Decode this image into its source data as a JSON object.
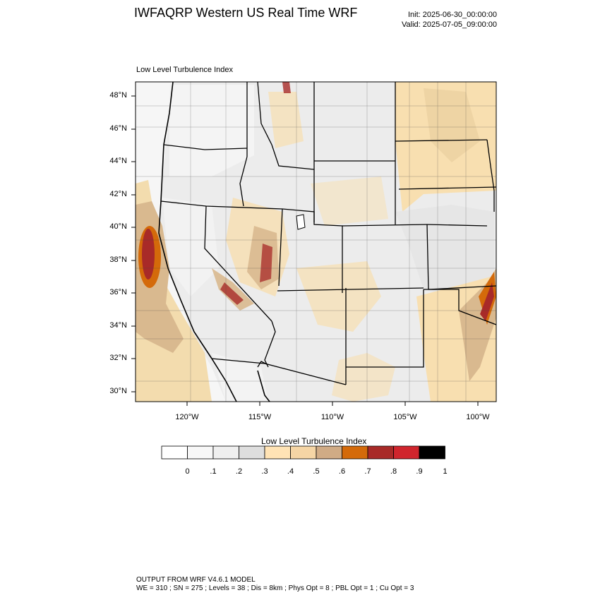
{
  "header": {
    "title": "IWFAQRP Western US Real Time WRF",
    "init": "Init: 2025-06-30_00:00:00",
    "valid": "Valid: 2025-07-05_09:00:00"
  },
  "plot": {
    "subtitle": "Low Level Turbulence Index",
    "lat_labels": [
      "48°N",
      "46°N",
      "44°N",
      "42°N",
      "40°N",
      "38°N",
      "36°N",
      "34°N",
      "32°N",
      "30°N"
    ],
    "lon_labels": [
      "120°W",
      "115°W",
      "110°W",
      "105°W",
      "100°W"
    ]
  },
  "colorbar": {
    "title": "Low Level Turbulence Index",
    "colors": [
      "#ffffff",
      "#f7f7f7",
      "#efefef",
      "#dedede",
      "#ffe3b5",
      "#f5d5a5",
      "#d0ab85",
      "#d46a0a",
      "#a82a28",
      "#d0252d",
      "#000000"
    ],
    "labels": [
      "0",
      ".1",
      ".2",
      ".3",
      ".4",
      ".5",
      ".6",
      ".7",
      ".8",
      ".9",
      "1"
    ]
  },
  "footer": {
    "line1": "OUTPUT FROM WRF V4.6.1 MODEL",
    "line2": "WE = 310 ; SN = 275 ; Levels = 38 ; Dis = 8km ; Phys Opt = 8 ; PBL Opt = 1 ; Cu Opt = 3"
  }
}
